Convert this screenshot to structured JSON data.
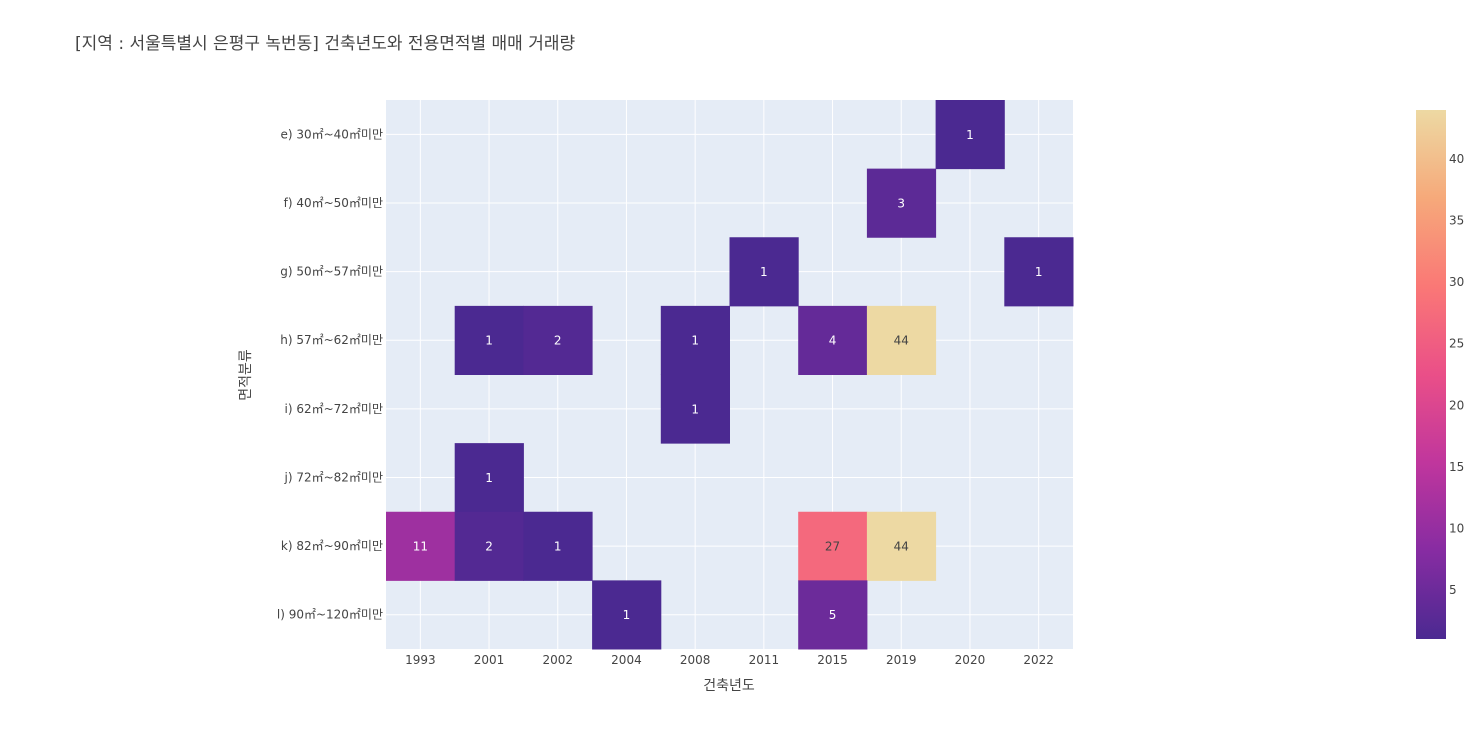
{
  "chart_data": {
    "type": "heatmap",
    "title": "[지역 : 서울특별시 은평구 녹번동] 건축년도와 전용면적별 매매 거래량",
    "xlabel": "건축년도",
    "ylabel": "면적분류",
    "x_categories": [
      "1993",
      "2001",
      "2002",
      "2004",
      "2008",
      "2011",
      "2015",
      "2019",
      "2020",
      "2022"
    ],
    "y_categories": [
      "e) 30㎡~40㎡미만",
      "f) 40㎡~50㎡미만",
      "g) 50㎡~57㎡미만",
      "h) 57㎡~62㎡미만",
      "i) 62㎡~72㎡미만",
      "j) 72㎡~82㎡미만",
      "k) 82㎡~90㎡미만",
      "l) 90㎡~120㎡미만"
    ],
    "cells": [
      {
        "x": "2020",
        "y": "e) 30㎡~40㎡미만",
        "value": 1
      },
      {
        "x": "2019",
        "y": "f) 40㎡~50㎡미만",
        "value": 3
      },
      {
        "x": "2011",
        "y": "g) 50㎡~57㎡미만",
        "value": 1
      },
      {
        "x": "2022",
        "y": "g) 50㎡~57㎡미만",
        "value": 1
      },
      {
        "x": "2001",
        "y": "h) 57㎡~62㎡미만",
        "value": 1
      },
      {
        "x": "2002",
        "y": "h) 57㎡~62㎡미만",
        "value": 2
      },
      {
        "x": "2008",
        "y": "h) 57㎡~62㎡미만",
        "value": 1
      },
      {
        "x": "2015",
        "y": "h) 57㎡~62㎡미만",
        "value": 4
      },
      {
        "x": "2019",
        "y": "h) 57㎡~62㎡미만",
        "value": 44
      },
      {
        "x": "2008",
        "y": "i) 62㎡~72㎡미만",
        "value": 1
      },
      {
        "x": "2001",
        "y": "j) 72㎡~82㎡미만",
        "value": 1
      },
      {
        "x": "1993",
        "y": "k) 82㎡~90㎡미만",
        "value": 11
      },
      {
        "x": "2001",
        "y": "k) 82㎡~90㎡미만",
        "value": 2
      },
      {
        "x": "2002",
        "y": "k) 82㎡~90㎡미만",
        "value": 1
      },
      {
        "x": "2015",
        "y": "k) 82㎡~90㎡미만",
        "value": 27
      },
      {
        "x": "2019",
        "y": "k) 82㎡~90㎡미만",
        "value": 44
      },
      {
        "x": "2004",
        "y": "l) 90㎡~120㎡미만",
        "value": 1
      },
      {
        "x": "2015",
        "y": "l) 90㎡~120㎡미만",
        "value": 5
      }
    ],
    "colorscale": {
      "name": "Agsunset",
      "min": 1,
      "max": 44,
      "stops": [
        {
          "t": 0.0,
          "color": "#4b2991"
        },
        {
          "t": 0.1667,
          "color": "#872ca2"
        },
        {
          "t": 0.3333,
          "color": "#c0369d"
        },
        {
          "t": 0.5,
          "color": "#ea4f88"
        },
        {
          "t": 0.6667,
          "color": "#fa7876"
        },
        {
          "t": 0.8333,
          "color": "#f6a97a"
        },
        {
          "t": 1.0,
          "color": "#edd9a3"
        }
      ],
      "ticks": [
        5,
        10,
        15,
        20,
        25,
        30,
        35,
        40
      ]
    },
    "colors": {
      "plot_background": "#e5ecf6",
      "gridline": "#ffffff",
      "text": "#2a3f5f",
      "title": "#444444",
      "axis_text": "#444444"
    },
    "legend": "colorbar-right"
  }
}
